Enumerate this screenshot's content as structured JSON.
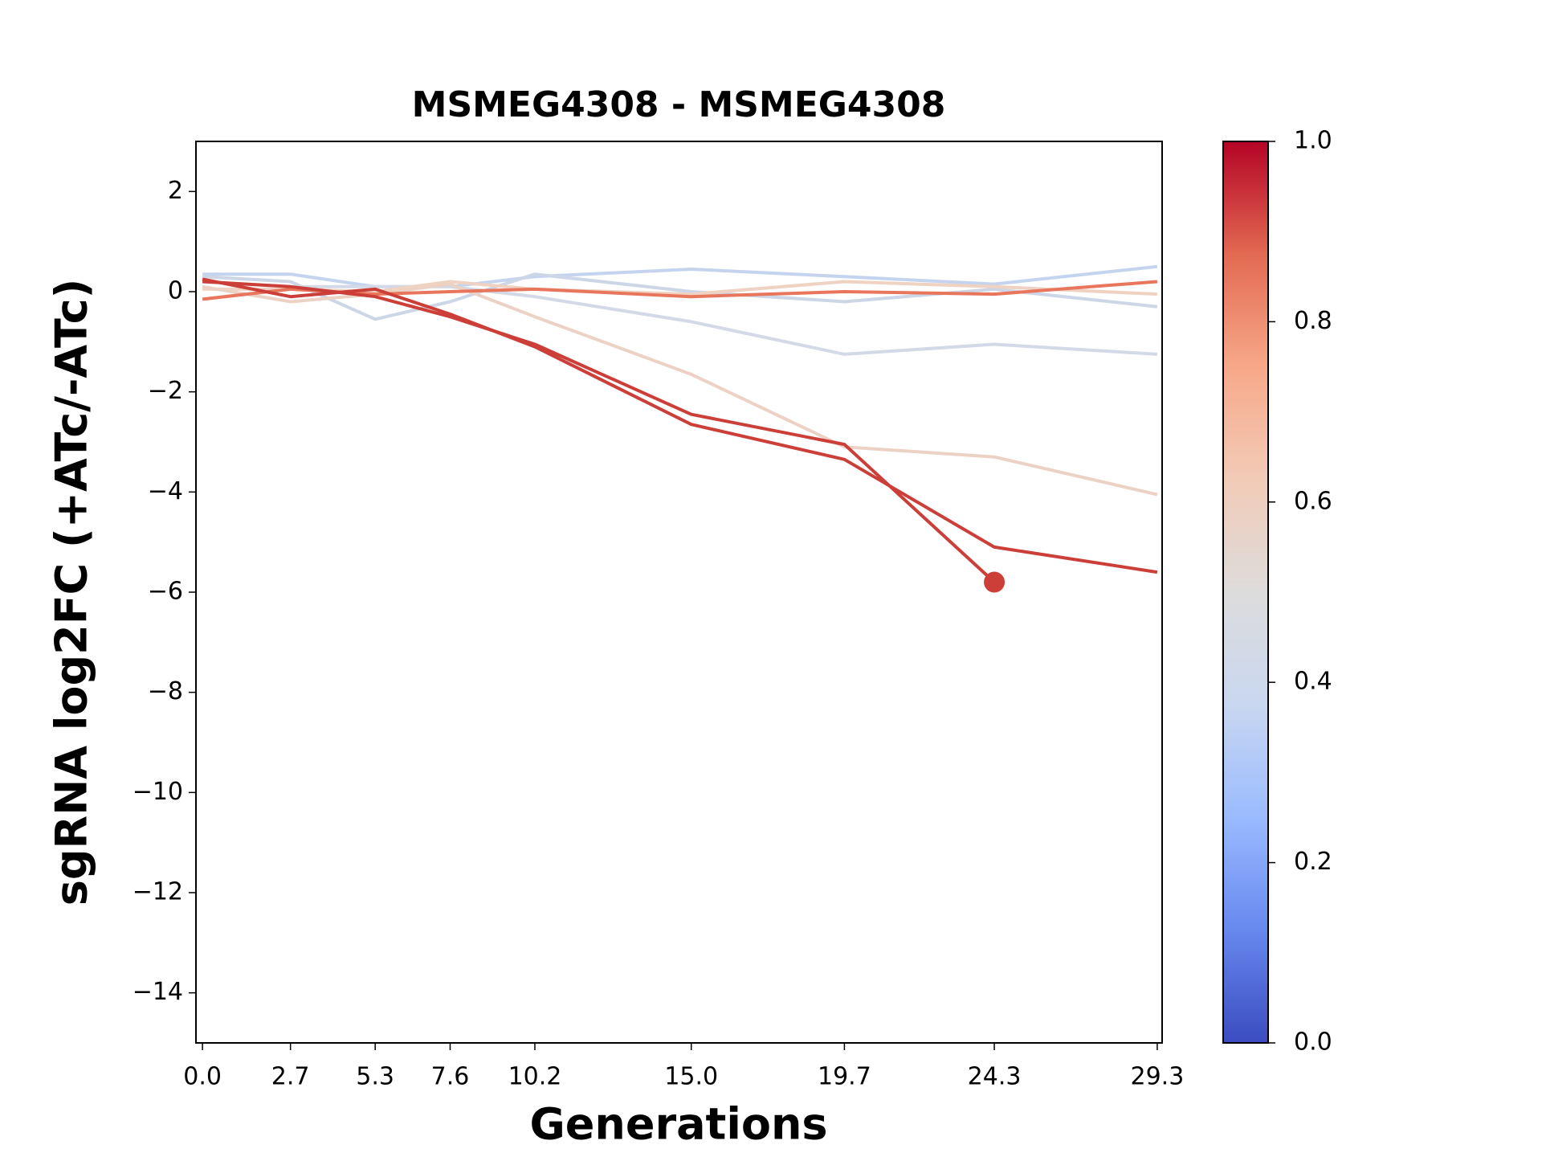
{
  "chart_data": {
    "type": "line",
    "title": "MSMEG4308 - MSMEG4308",
    "xlabel": "Generations",
    "ylabel": "sgRNA log2FC (+ATc/-ATc)",
    "x": [
      0.0,
      2.7,
      5.3,
      7.6,
      10.2,
      15.0,
      19.7,
      24.3,
      29.3
    ],
    "xlim": [
      -0.2,
      29.45
    ],
    "xticks": [
      {
        "value": 0.0,
        "label": "0.0"
      },
      2.7,
      5.3,
      7.6,
      10.2,
      {
        "value": 15.0,
        "label": "15.0"
      },
      19.7,
      24.3,
      29.3
    ],
    "ylim": [
      -15,
      3
    ],
    "yticks": [
      {
        "value": -14,
        "label": "−14"
      },
      {
        "value": -12,
        "label": "−12"
      },
      {
        "value": -10,
        "label": "−10"
      },
      {
        "value": -8,
        "label": "−8"
      },
      {
        "value": -6,
        "label": "−6"
      },
      {
        "value": -4,
        "label": "−4"
      },
      {
        "value": -2,
        "label": "−2"
      },
      0,
      2
    ],
    "series": [
      {
        "color": "#c5d4ee",
        "values": [
          0.35,
          0.35,
          0.1,
          0.1,
          0.3,
          0.45,
          0.3,
          0.15,
          0.5
        ]
      },
      {
        "color": "#cdd6e6",
        "values": [
          0.3,
          0.2,
          -0.55,
          -0.2,
          0.35,
          0.0,
          -0.2,
          0.05,
          -0.3
        ]
      },
      {
        "color": "#d3d9e6",
        "values": [
          0.2,
          0.1,
          0.1,
          0.1,
          -0.1,
          -0.6,
          -1.25,
          -1.05,
          -1.25
        ]
      },
      {
        "color": "#efd2c2",
        "values": [
          0.05,
          0.05,
          0.0,
          0.2,
          0.05,
          -0.05,
          0.2,
          0.1,
          -0.05
        ]
      },
      {
        "color": "#ecd2c4",
        "values": [
          0.1,
          -0.2,
          -0.05,
          0.15,
          -0.5,
          -1.65,
          -3.1,
          -3.3,
          -4.05
        ]
      },
      {
        "color": "#e8765c",
        "values": [
          -0.15,
          0.05,
          -0.05,
          0.0,
          0.05,
          -0.1,
          0.0,
          -0.05,
          0.2
        ]
      },
      {
        "color": "#cc3f39",
        "values": [
          0.25,
          -0.1,
          0.05,
          -0.45,
          -1.1,
          -2.65,
          -3.35,
          -5.1,
          -5.6
        ]
      },
      {
        "color": "#cc3f39",
        "values": [
          0.2,
          0.1,
          -0.1,
          -0.5,
          -1.05,
          -2.45,
          -3.05,
          -5.8,
          null
        ],
        "end_marker": true
      }
    ],
    "colorbar": {
      "lim": [
        0,
        1
      ],
      "ticks": [
        {
          "value": 0,
          "label": "0.0"
        },
        {
          "value": 0.2,
          "label": "0.2"
        },
        {
          "value": 0.4,
          "label": "0.4"
        },
        {
          "value": 0.6,
          "label": "0.6"
        },
        {
          "value": 0.8,
          "label": "0.8"
        },
        {
          "value": 1,
          "label": "1.0"
        }
      ],
      "colors": [
        "#3b4cc0",
        "#6788ee",
        "#9abbff",
        "#c9d7f0",
        "#dddcdc",
        "#f2cbb7",
        "#f7a889",
        "#e26952",
        "#b40426"
      ]
    }
  }
}
